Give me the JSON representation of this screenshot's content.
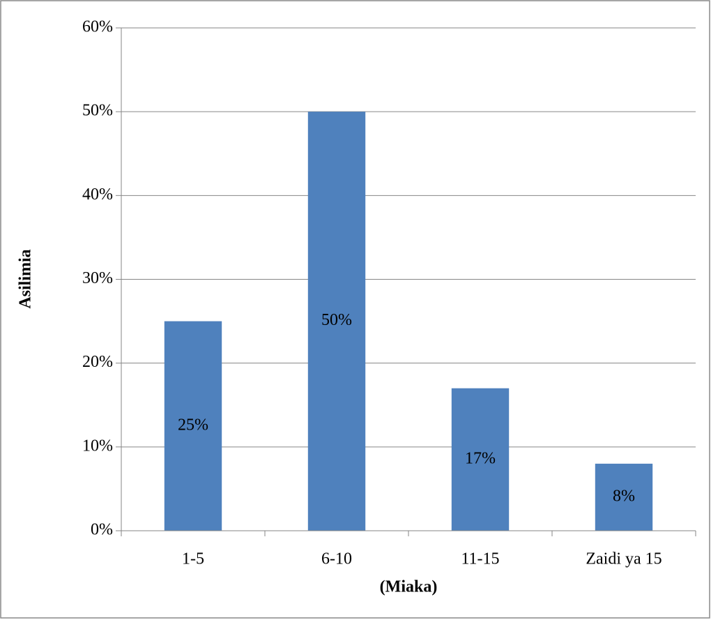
{
  "chart_data": {
    "type": "bar",
    "x_label": "(Miaka)",
    "y_label": "Asilimia",
    "categories": [
      "1-5",
      "6-10",
      "11-15",
      "Zaidi ya 15"
    ],
    "values": [
      25,
      50,
      17,
      8
    ],
    "value_labels": [
      "25%",
      "50%",
      "17%",
      "8%"
    ],
    "color": "#4f81bd",
    "ylim": [
      0,
      60
    ],
    "yticks": [
      {
        "value": 0,
        "label": "0%"
      },
      {
        "value": 10,
        "label": "10%"
      },
      {
        "value": 20,
        "label": "20%"
      },
      {
        "value": 30,
        "label": "30%"
      },
      {
        "value": 40,
        "label": "40%"
      },
      {
        "value": 50,
        "label": "50%"
      },
      {
        "value": 60,
        "label": "60%"
      }
    ],
    "grid": true
  }
}
